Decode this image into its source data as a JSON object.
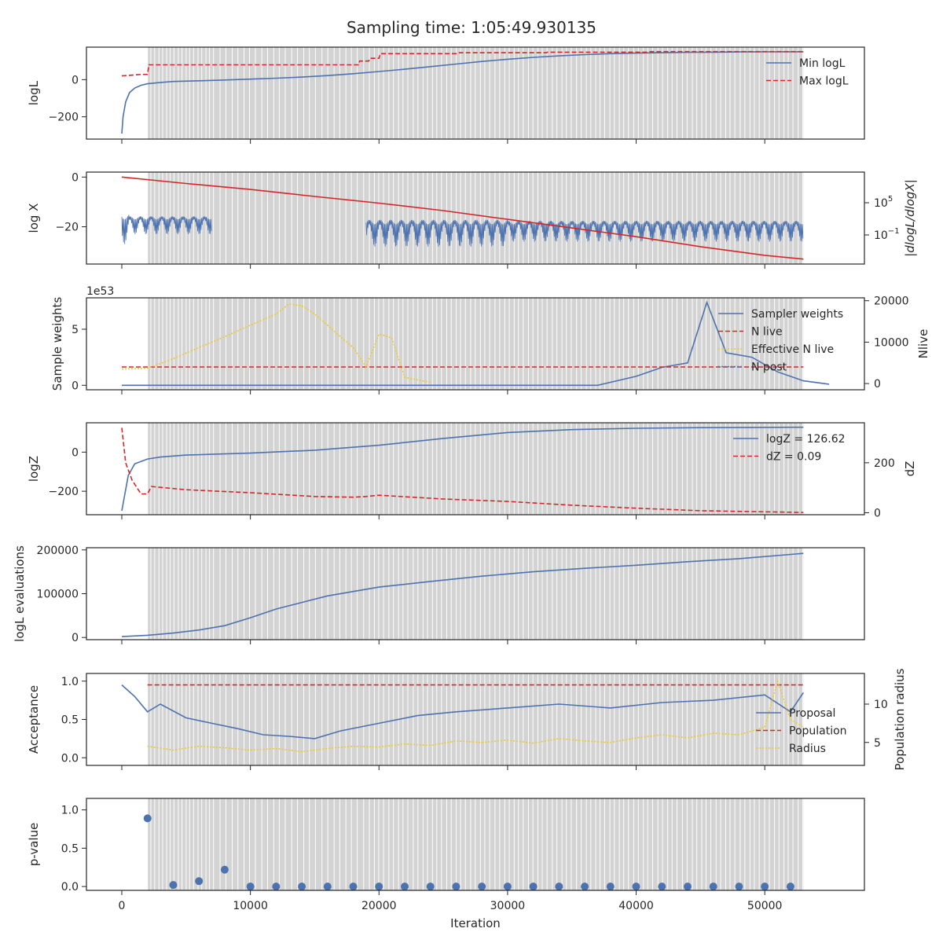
{
  "title": "Sampling time: 1:05:49.930135",
  "xlabel": "Iteration",
  "chart_data": [
    {
      "type": "line",
      "ylabel": "logL",
      "xlim": [
        -2750,
        57750
      ],
      "ylim": [
        -320,
        175
      ],
      "x_ticks": [
        0,
        10000,
        20000,
        30000,
        40000,
        50000
      ],
      "y_ticks": [
        -200,
        0
      ],
      "y_tick_labels": [
        "−200",
        "0"
      ],
      "grid": false,
      "legend_position": "top-right",
      "series": [
        {
          "name": "Min logL",
          "color": "#4c72b0",
          "style": "solid",
          "x": [
            0,
            100,
            300,
            600,
            1000,
            1500,
            2000,
            3000,
            4000,
            6000,
            8000,
            10000,
            12000,
            14000,
            16000,
            18000,
            20000,
            22000,
            24000,
            26000,
            28000,
            30000,
            32000,
            34000,
            36000,
            38000,
            40000,
            42000,
            44000,
            46000,
            48000,
            50000,
            53000
          ],
          "y": [
            -290,
            -200,
            -120,
            -70,
            -45,
            -30,
            -22,
            -15,
            -10,
            -6,
            -2,
            3,
            8,
            14,
            22,
            32,
            44,
            56,
            70,
            84,
            98,
            110,
            120,
            128,
            135,
            140,
            143,
            145,
            147,
            148,
            149,
            150,
            150
          ]
        },
        {
          "name": "Max logL",
          "color": "#d62728",
          "style": "dashed",
          "x": [
            0,
            1500,
            2000,
            2100,
            18400,
            18500,
            19200,
            19300,
            20000,
            20100,
            26000,
            26100,
            33000,
            33100,
            41000,
            41100,
            53000
          ],
          "y": [
            20,
            28,
            28,
            80,
            80,
            100,
            100,
            115,
            115,
            140,
            140,
            145,
            145,
            148,
            148,
            151,
            151
          ]
        }
      ]
    },
    {
      "type": "line",
      "ylabel": "log X",
      "y2label": "|dlogL/dlogX|",
      "xlim": [
        -2750,
        57750
      ],
      "ylim": [
        -35,
        2
      ],
      "x_ticks": [
        0,
        10000,
        20000,
        30000,
        40000,
        50000
      ],
      "y_ticks": [
        0,
        -20
      ],
      "y_tick_labels": [
        "0",
        "−20"
      ],
      "y2_ticks": [
        "10^5",
        "10^-1"
      ],
      "grid": false,
      "series": [
        {
          "name": "log X",
          "color": "#d62728",
          "style": "solid",
          "x": [
            0,
            5000,
            10000,
            15000,
            20000,
            25000,
            30000,
            35000,
            40000,
            45000,
            50000,
            53000
          ],
          "y": [
            0,
            -2.6,
            -5,
            -7.8,
            -10.5,
            -13.5,
            -17,
            -20.5,
            -24,
            -28,
            -31.5,
            -33
          ]
        }
      ]
    },
    {
      "type": "line",
      "ylabel": "Sample weights",
      "y_offset_label": "1e53",
      "y2label": "Nlive",
      "xlim": [
        -2750,
        57750
      ],
      "ylim": [
        -0.4,
        7.8
      ],
      "x_ticks": [
        0,
        10000,
        20000,
        30000,
        40000,
        50000
      ],
      "y_ticks": [
        0,
        5
      ],
      "y2_ticks": [
        0,
        10000,
        20000
      ],
      "y2lim": [
        -1500,
        20700
      ],
      "grid": false,
      "legend_position": "top-right",
      "series": [
        {
          "name": "Sampler weights",
          "color": "#4c72b0",
          "style": "solid",
          "x": [
            0,
            37000,
            40000,
            42000,
            44000,
            45500,
            47000,
            49000,
            51000,
            53000,
            55000
          ],
          "y": [
            0,
            0,
            0.8,
            1.6,
            2.0,
            7.4,
            2.9,
            2.5,
            1.2,
            0.4,
            0.1
          ]
        },
        {
          "name": "N live",
          "color": "#d62728",
          "style": "dashed",
          "x": [
            0,
            53000
          ],
          "y2": [
            4000,
            4000
          ]
        },
        {
          "name": "Effective N live",
          "color": "#f0c929",
          "style": "dotted",
          "x": [
            0,
            2000,
            4000,
            6000,
            8000,
            10000,
            12000,
            13000,
            14000,
            15000,
            16000,
            17000,
            18000,
            19000,
            20000,
            21000,
            22000,
            24000
          ],
          "y2": [
            3500,
            3700,
            6000,
            8700,
            11300,
            14100,
            16800,
            19200,
            18800,
            16800,
            14100,
            11300,
            8700,
            4000,
            12000,
            11000,
            1500,
            300
          ]
        },
        {
          "name": "N post",
          "color": "#4c72b0",
          "style": "dotted",
          "x": [],
          "y2": []
        }
      ]
    },
    {
      "type": "line",
      "ylabel": "logZ",
      "y2label": "dZ",
      "xlim": [
        -2750,
        57750
      ],
      "ylim": [
        -320,
        150
      ],
      "x_ticks": [
        0,
        10000,
        20000,
        30000,
        40000,
        50000
      ],
      "y_ticks": [
        -200,
        0
      ],
      "y_tick_labels": [
        "−200",
        "0"
      ],
      "y2_ticks": [
        0,
        200
      ],
      "y2lim": [
        -8,
        360
      ],
      "grid": false,
      "legend_position": "top-right",
      "series": [
        {
          "name": "logZ = 126.62",
          "color": "#4c72b0",
          "style": "solid",
          "x": [
            0,
            500,
            1000,
            2000,
            3000,
            5000,
            10000,
            15000,
            20000,
            25000,
            30000,
            35000,
            40000,
            45000,
            53000
          ],
          "y": [
            -300,
            -120,
            -60,
            -35,
            -25,
            -15,
            -5,
            10,
            35,
            70,
            100,
            115,
            122,
            125,
            127
          ]
        },
        {
          "name": "dZ = 0.09",
          "color": "#d62728",
          "style": "dashed",
          "x": [
            0,
            300,
            800,
            1500,
            2000,
            2300,
            5000,
            10000,
            15000,
            18000,
            19000,
            20000,
            25000,
            30000,
            35000,
            40000,
            45000,
            53000
          ],
          "y2": [
            340,
            200,
            130,
            75,
            75,
            105,
            92,
            80,
            65,
            62,
            65,
            70,
            55,
            45,
            30,
            18,
            8,
            1
          ]
        }
      ]
    },
    {
      "type": "line",
      "ylabel": "logL evaluations",
      "xlim": [
        -2750,
        57750
      ],
      "ylim": [
        -5000,
        205000
      ],
      "x_ticks": [
        0,
        10000,
        20000,
        30000,
        40000,
        50000
      ],
      "y_ticks": [
        0,
        100000,
        200000
      ],
      "grid": false,
      "series": [
        {
          "name": "logL evaluations",
          "color": "#4c72b0",
          "style": "solid",
          "x": [
            0,
            2000,
            4000,
            6000,
            8000,
            10000,
            12000,
            14000,
            16000,
            18000,
            20000,
            24000,
            28000,
            32000,
            36000,
            40000,
            44000,
            48000,
            53000
          ],
          "y": [
            2000,
            5000,
            10000,
            17000,
            27000,
            45000,
            65000,
            80000,
            95000,
            105000,
            115000,
            128000,
            140000,
            150000,
            158000,
            165000,
            173000,
            180000,
            192000
          ]
        }
      ]
    },
    {
      "type": "line",
      "ylabel": "Acceptance",
      "y2label": "Population radius",
      "xlim": [
        -2750,
        57750
      ],
      "ylim": [
        -0.1,
        1.1
      ],
      "x_ticks": [
        0,
        10000,
        20000,
        30000,
        40000,
        50000
      ],
      "y_ticks": [
        0.0,
        0.5,
        1.0
      ],
      "y_tick_labels": [
        "0.0",
        "0.5",
        "1.0"
      ],
      "y2_ticks": [
        5,
        10
      ],
      "y2lim": [
        2,
        14
      ],
      "grid": false,
      "legend_position": "center-right",
      "series": [
        {
          "name": "Proposal",
          "color": "#4c72b0",
          "style": "solid",
          "x": [
            0,
            1000,
            2000,
            3000,
            5000,
            7000,
            9000,
            11000,
            13000,
            15000,
            17000,
            20000,
            23000,
            26000,
            30000,
            34000,
            38000,
            42000,
            46000,
            50000,
            52000,
            53000
          ],
          "y": [
            0.95,
            0.8,
            0.6,
            0.7,
            0.52,
            0.45,
            0.38,
            0.3,
            0.28,
            0.25,
            0.35,
            0.45,
            0.55,
            0.6,
            0.65,
            0.7,
            0.65,
            0.72,
            0.75,
            0.82,
            0.6,
            0.85
          ]
        },
        {
          "name": "Population",
          "color": "#d62728",
          "style": "dashed",
          "x": [
            2000,
            53000
          ],
          "y2": [
            12.5,
            12.5
          ]
        },
        {
          "name": "Radius",
          "color": "#f0c929",
          "style": "dotted",
          "x": [
            2000,
            4000,
            6000,
            8000,
            10000,
            12000,
            14000,
            16000,
            18000,
            20000,
            22000,
            24000,
            26000,
            28000,
            30000,
            32000,
            34000,
            36000,
            38000,
            40000,
            42000,
            44000,
            46000,
            48000,
            50000,
            51000,
            52000,
            53000
          ],
          "y2": [
            4.5,
            4.0,
            4.5,
            4.3,
            4.0,
            4.2,
            3.8,
            4.2,
            4.5,
            4.4,
            4.8,
            4.6,
            5.2,
            5.0,
            5.3,
            4.9,
            5.5,
            5.2,
            5.0,
            5.6,
            6.0,
            5.6,
            6.2,
            6.0,
            7.0,
            13.0,
            8.0,
            7.0
          ]
        }
      ]
    },
    {
      "type": "scatter",
      "ylabel": "p-value",
      "xlim": [
        -2750,
        57750
      ],
      "ylim": [
        -0.05,
        1.15
      ],
      "x_ticks": [
        0,
        10000,
        20000,
        30000,
        40000,
        50000
      ],
      "x_tick_labels": [
        "0",
        "10000",
        "20000",
        "30000",
        "40000",
        "50000"
      ],
      "y_ticks": [
        0.0,
        0.5,
        1.0
      ],
      "y_tick_labels": [
        "0.0",
        "0.5",
        "1.0"
      ],
      "grid": false,
      "series": [
        {
          "name": "p-value",
          "color": "#4c72b0",
          "x": [
            2000,
            4000,
            6000,
            8000,
            10000,
            12000,
            14000,
            16000,
            18000,
            20000,
            22000,
            24000,
            26000,
            28000,
            30000,
            32000,
            34000,
            36000,
            38000,
            40000,
            42000,
            44000,
            46000,
            48000,
            50000,
            52000
          ],
          "y": [
            0.89,
            0.02,
            0.07,
            0.22,
            0.0,
            0.0,
            0.0,
            0.0,
            0.0,
            0.0,
            0.0,
            0.0,
            0.0,
            0.0,
            0.0,
            0.0,
            0.0,
            0.0,
            0.0,
            0.0,
            0.0,
            0.0,
            0.0,
            0.0,
            0.0,
            0.0
          ]
        }
      ]
    }
  ],
  "colors": {
    "shade": "#d3d3d3",
    "rebuild_line": "#ffffff",
    "blue": "#4c72b0",
    "red": "#d62728",
    "yellow": "#f0c929"
  }
}
